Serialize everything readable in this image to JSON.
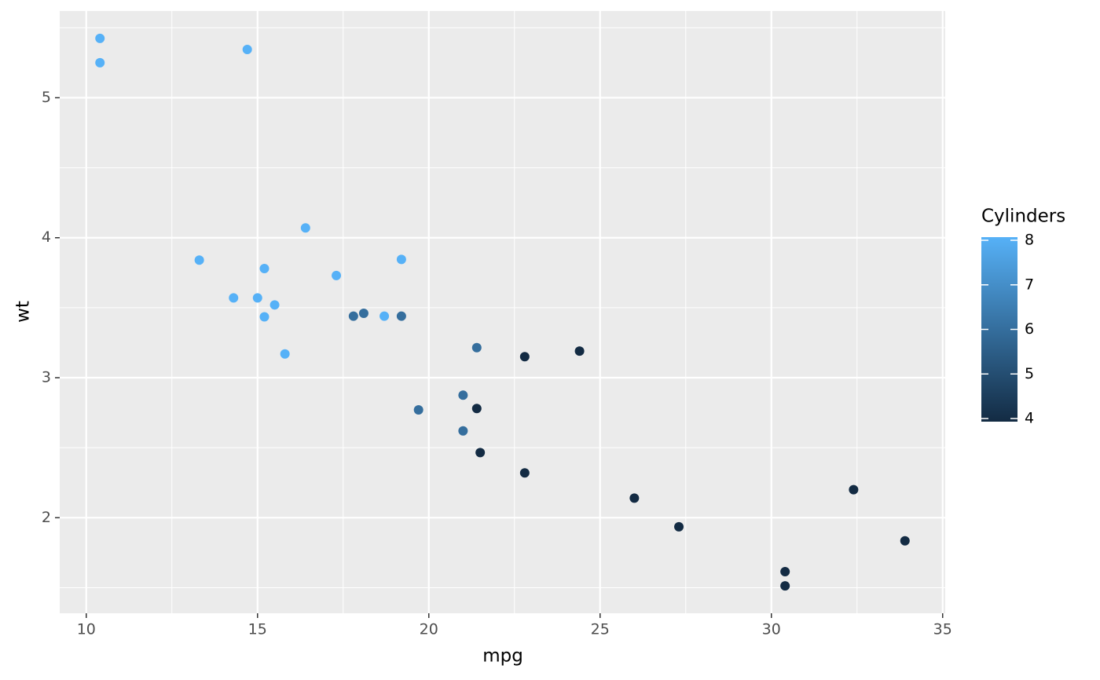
{
  "chart_data": {
    "type": "scatter",
    "xlabel": "mpg",
    "ylabel": "wt",
    "xlim": [
      9.225,
      35.075
    ],
    "ylim": [
      1.31745,
      5.61955
    ],
    "xticks": [
      10,
      15,
      20,
      25,
      30,
      35
    ],
    "yticks": [
      2,
      3,
      4,
      5
    ],
    "xminor": [
      12.5,
      17.5,
      22.5,
      27.5,
      32.5
    ],
    "yminor": [
      1.5,
      2.5,
      3.5,
      4.5,
      5.5
    ],
    "grid": true,
    "series": [
      {
        "x": [
          21.0,
          21.0,
          22.8,
          21.4,
          18.7,
          18.1,
          14.3,
          24.4,
          22.8,
          19.2,
          17.8,
          16.4,
          17.3,
          15.2,
          10.4,
          10.4,
          14.7,
          32.4,
          30.4,
          33.9,
          21.5,
          15.5,
          15.2,
          13.3,
          19.2,
          27.3,
          26.0,
          30.4,
          15.8,
          19.7,
          15.0,
          21.4
        ],
        "values": [
          2.62,
          2.875,
          2.32,
          3.215,
          3.44,
          3.46,
          3.57,
          3.19,
          3.15,
          3.44,
          3.44,
          4.07,
          3.73,
          3.78,
          5.25,
          5.424,
          5.345,
          2.2,
          1.615,
          1.835,
          2.465,
          3.52,
          3.435,
          3.84,
          3.845,
          1.935,
          2.14,
          1.513,
          3.17,
          2.77,
          3.57,
          2.78
        ],
        "color_values": [
          6,
          6,
          4,
          6,
          8,
          6,
          8,
          4,
          4,
          6,
          6,
          8,
          8,
          8,
          8,
          8,
          8,
          4,
          4,
          4,
          4,
          8,
          8,
          8,
          8,
          4,
          4,
          4,
          8,
          6,
          8,
          4
        ]
      }
    ],
    "legend": {
      "title": "Cylinders",
      "limits": [
        4,
        8
      ],
      "ticks": [
        4,
        5,
        6,
        7,
        8
      ],
      "low_color": "#132B43",
      "high_color": "#56B1F7",
      "position": "right"
    }
  }
}
